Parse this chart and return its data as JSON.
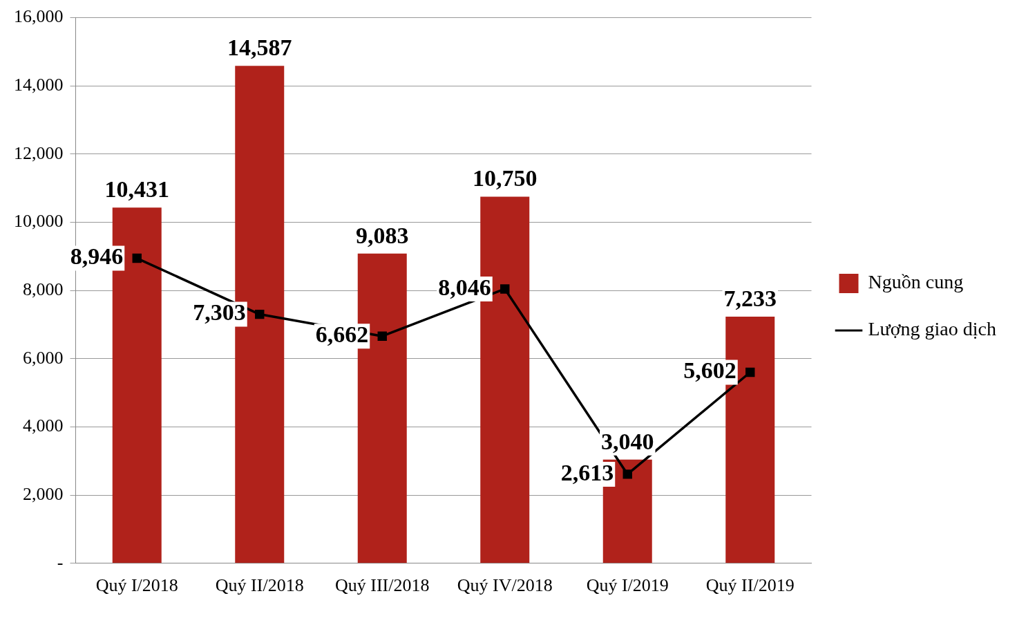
{
  "chart_data": {
    "type": "bar",
    "categories": [
      "Quý I/2018",
      "Quý II/2018",
      "Quý III/2018",
      "Quý IV/2018",
      "Quý I/2019",
      "Quý II/2019"
    ],
    "series": [
      {
        "name": "Nguồn cung",
        "type": "bar",
        "color": "#b0221b",
        "values": [
          10431,
          14587,
          9083,
          10750,
          3040,
          7233
        ],
        "value_labels": [
          "10,431",
          "14,587",
          "9,083",
          "10,750",
          "3,040",
          "7,233"
        ]
      },
      {
        "name": "Lượng giao dịch",
        "type": "line",
        "color": "#000000",
        "marker": "square",
        "values": [
          8946,
          7303,
          6662,
          8046,
          2613,
          5602
        ],
        "value_labels": [
          "8,946",
          "7,303",
          "6,662",
          "8,046",
          "2,613",
          "5,602"
        ]
      }
    ],
    "ylim": [
      0,
      16000
    ],
    "yticks": [
      {
        "value": 0,
        "label": "-"
      },
      {
        "value": 2000,
        "label": "2,000"
      },
      {
        "value": 4000,
        "label": "4,000"
      },
      {
        "value": 6000,
        "label": "6,000"
      },
      {
        "value": 8000,
        "label": "8,000"
      },
      {
        "value": 10000,
        "label": "10,000"
      },
      {
        "value": 12000,
        "label": "12,000"
      },
      {
        "value": 14000,
        "label": "14,000"
      },
      {
        "value": 16000,
        "label": "16,000"
      }
    ],
    "grid": "y",
    "legend": "right"
  }
}
